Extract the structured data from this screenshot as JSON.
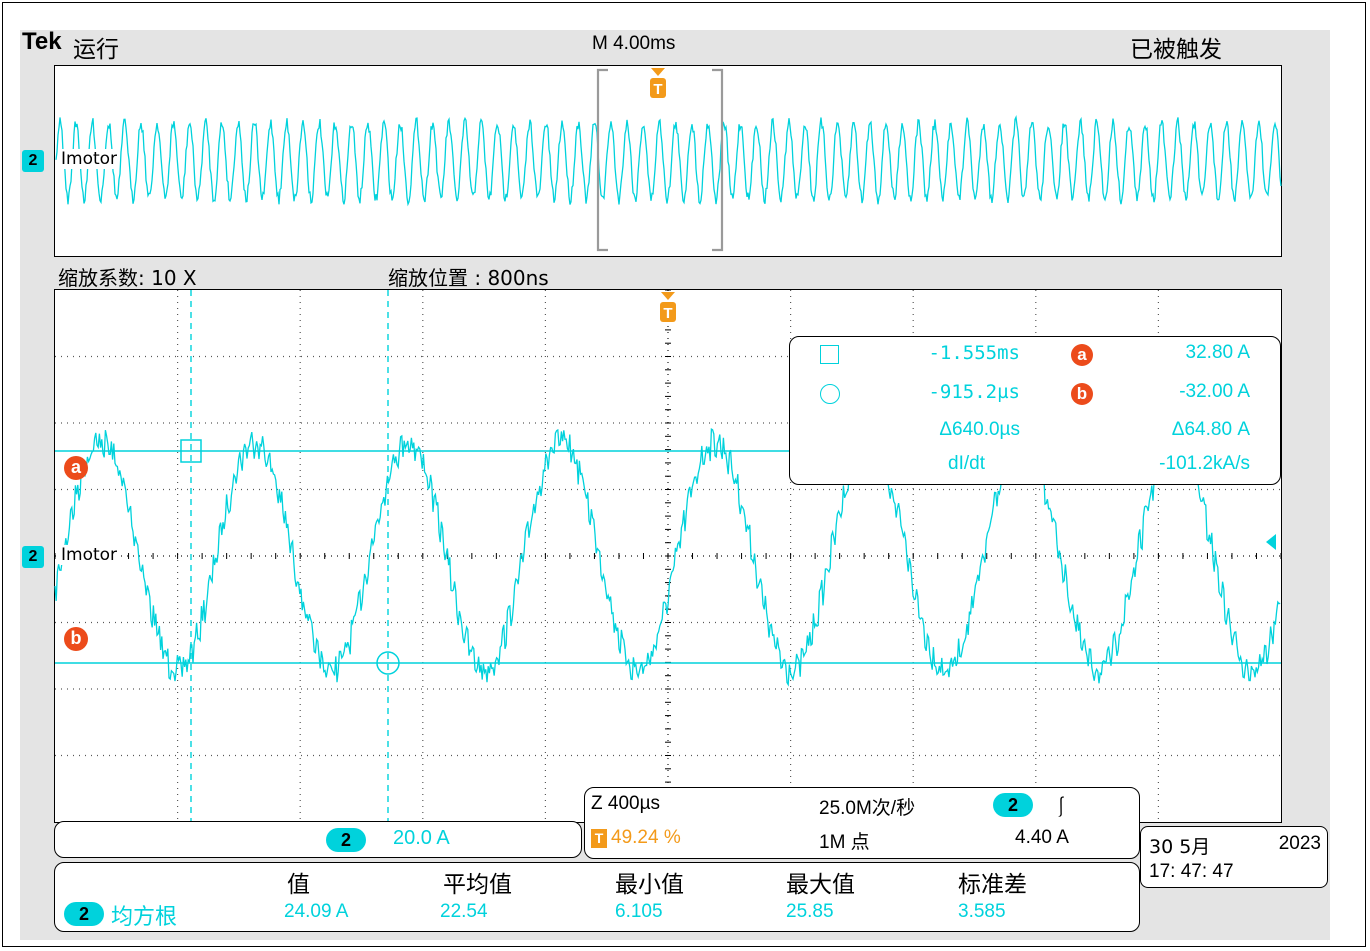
{
  "header": {
    "brand": "Tek",
    "run_state": "运行",
    "timebase": "M 4.00ms",
    "trigger_state": "已被触发"
  },
  "overview": {
    "channel_label": "Imotor",
    "channel_number": "2"
  },
  "zoom_bar": {
    "zoom_factor": "缩放系数: 10 X",
    "zoom_position": "缩放位置 :  800ns"
  },
  "main_plot": {
    "channel_label": "Imotor",
    "channel_number": "2",
    "cursor_a_label": "a",
    "cursor_b_label": "b",
    "trigger_marker": "T"
  },
  "cursor_readout": {
    "time_1": "-1.555ms",
    "time_2": "-915.2µs",
    "time_delta": "Δ640.0µs",
    "cursor_a_value": "32.80 A",
    "cursor_b_value": "-32.00 A",
    "value_delta": "Δ64.80 A",
    "rate_label": "dI/dt",
    "rate_value": "-101.2kA/s",
    "a_badge": "a",
    "b_badge": "b"
  },
  "channel_scale": {
    "channel": "2",
    "scale": "20.0 A"
  },
  "acquisition": {
    "zoom_time": "Z 400µs",
    "sample_rate": "25.0M次/秒",
    "trigger_position": "49.24 %",
    "record_length": "1M 点",
    "trigger_channel": "2",
    "trigger_slope": "⎰",
    "trigger_level": "4.40 A"
  },
  "datetime": {
    "date": "30 5月",
    "year": "2023",
    "time": "17: 47: 47"
  },
  "measurements": {
    "headers": [
      "值",
      "平均值",
      "最小值",
      "最大值",
      "标准差"
    ],
    "channel": "2",
    "name": "均方根",
    "values": [
      "24.09 A",
      "22.54",
      "6.105",
      "25.85",
      "3.585"
    ]
  },
  "colors": {
    "trace": "#00d2dc",
    "trigger": "#f39a1a",
    "cursor_marker": "#ec4b1b",
    "screen_bg": "#e4e4e4"
  }
}
